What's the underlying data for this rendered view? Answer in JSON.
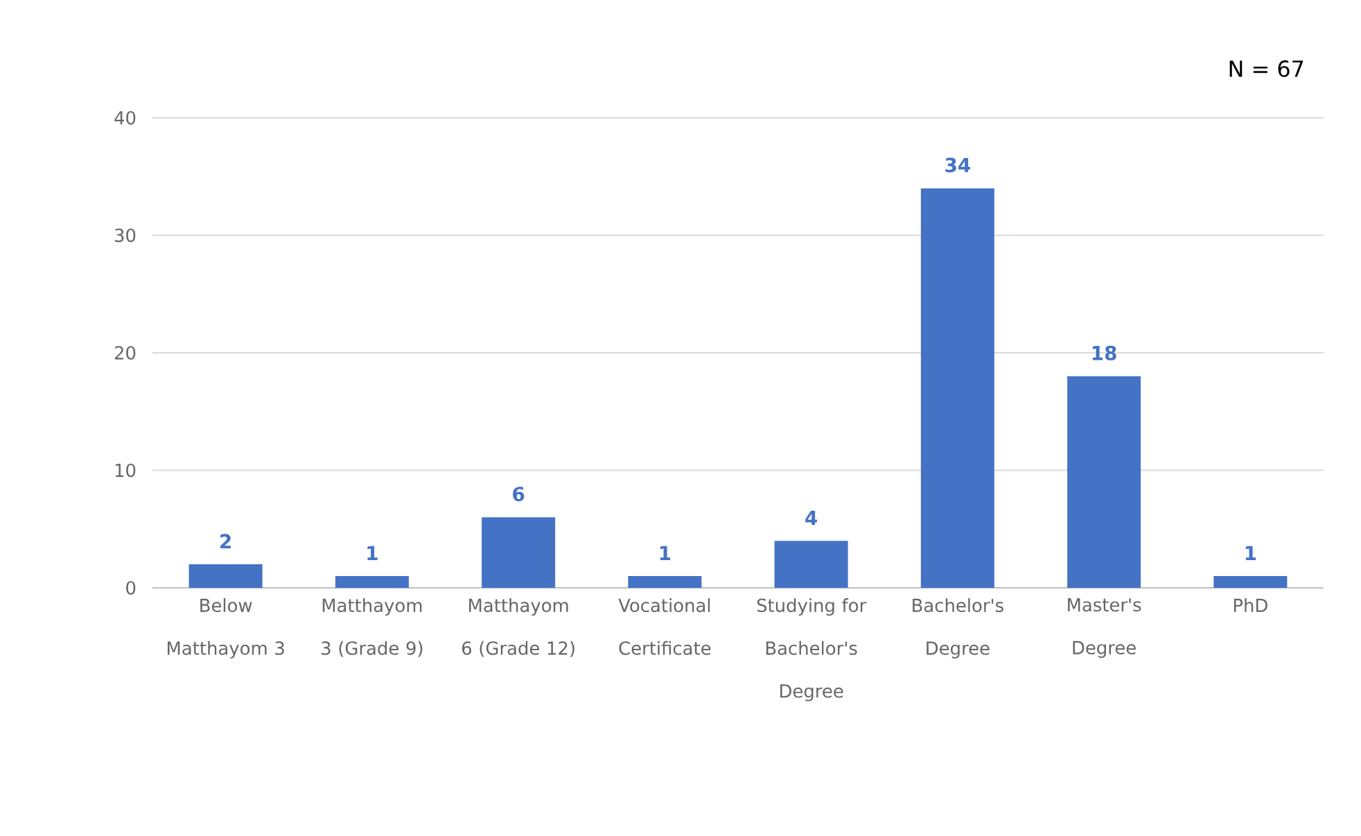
{
  "chart_data": {
    "type": "bar",
    "categories": [
      "Below Matthayom 3",
      "Matthayom 3 (Grade 9)",
      "Matthayom 6 (Grade 12)",
      "Vocational Certificate",
      "Studying for Bachelor's Degree",
      "Bachelor's Degree",
      "Master's Degree",
      "PhD"
    ],
    "values": [
      2,
      1,
      6,
      1,
      4,
      34,
      18,
      1
    ],
    "color": "#4472c4",
    "ylim": [
      0,
      40
    ],
    "yticks": [
      0,
      10,
      20,
      30,
      40
    ],
    "grid": "y",
    "data_labels": true,
    "annotations": [
      "N = 67"
    ]
  }
}
